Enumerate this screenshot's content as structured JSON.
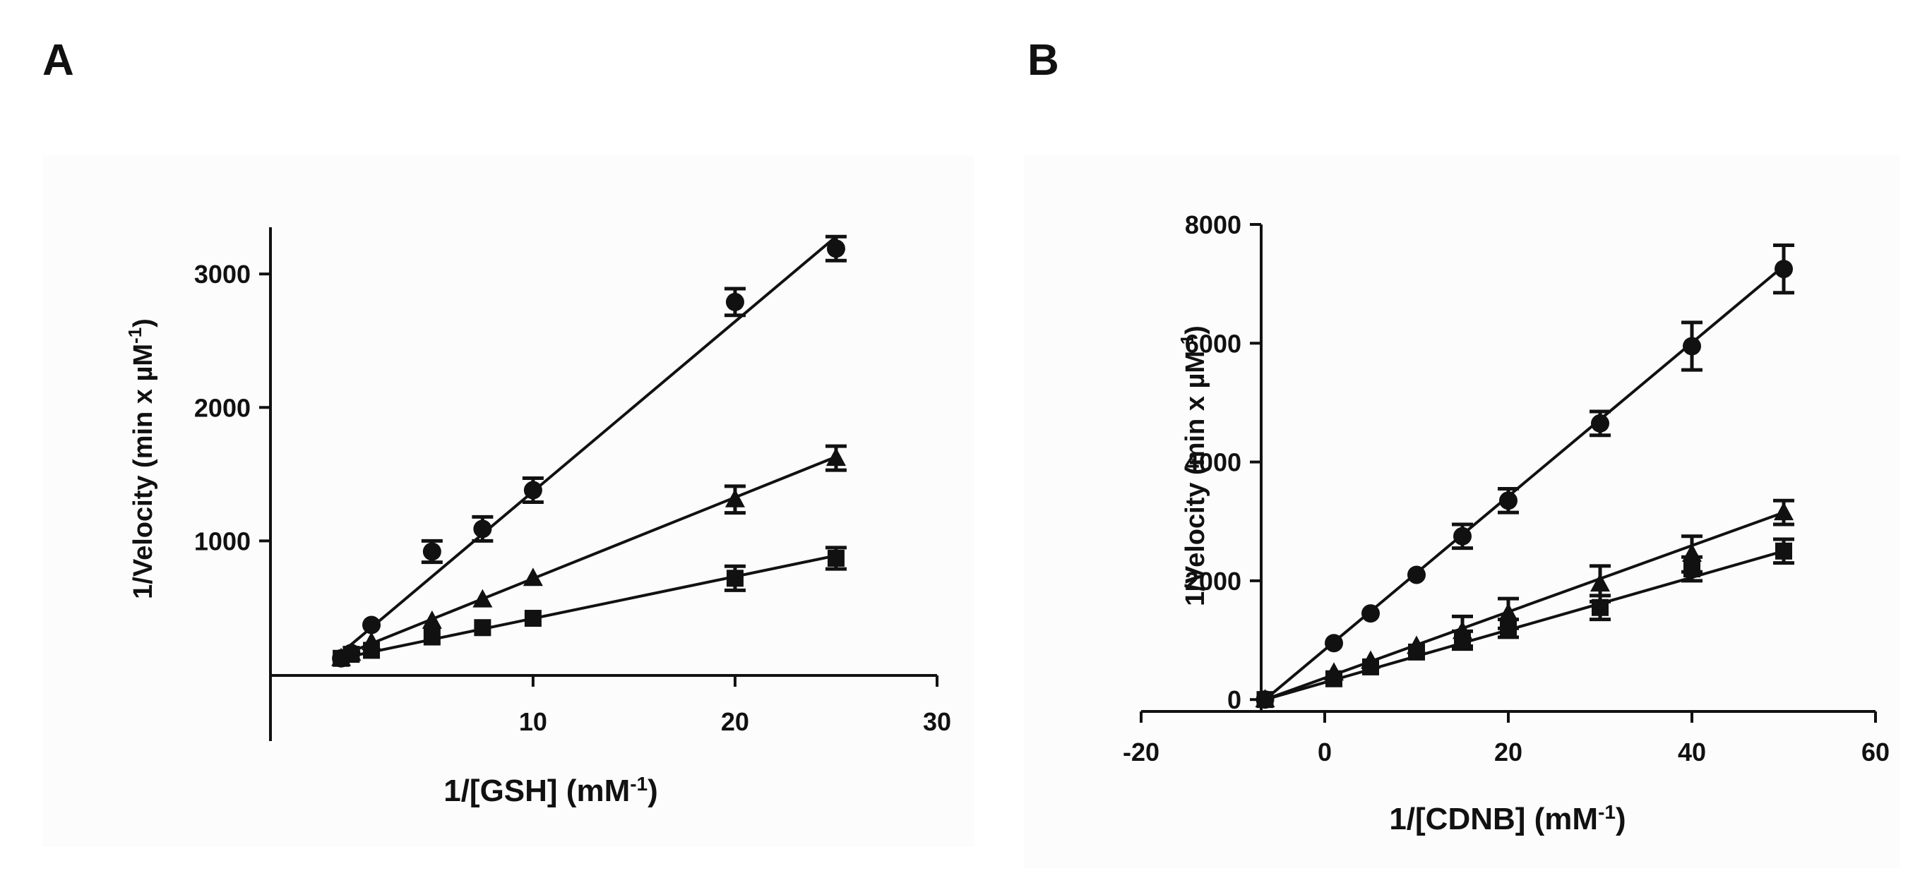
{
  "panels": [
    {
      "label": "A",
      "chart_data": {
        "type": "scatter",
        "title": "",
        "xlabel": "1/[GSH] (mM",
        "xlabel_sup": "-1",
        "xlabel_end": ")",
        "ylabel": "1/Velocity (min x  µM",
        "ylabel_sup": "-1",
        "ylabel_end": ")",
        "xlim": [
          -3,
          30
        ],
        "ylim": [
          -500,
          3350
        ],
        "xticks": [
          10,
          20,
          30
        ],
        "yticks": [
          1000,
          2000,
          3000
        ],
        "xtick_labels": [
          "10",
          "20",
          "30"
        ],
        "ytick_labels": [
          "1000",
          "2000",
          "3000"
        ],
        "series": [
          {
            "name": "circle",
            "marker": "circle",
            "x": [
              0.5,
              1,
              2,
              5,
              7.5,
              10,
              20,
              25
            ],
            "y": [
              120,
              160,
              370,
              920,
              1090,
              1380,
              2790,
              3190
            ],
            "err": [
              0,
              0,
              0,
              80,
              90,
              90,
              100,
              90
            ],
            "fit": [
              [
                0.5,
                160
              ],
              [
                25,
                3280
              ]
            ]
          },
          {
            "name": "triangle",
            "marker": "triangle",
            "x": [
              0.5,
              1,
              2,
              5,
              7.5,
              10,
              20,
              25
            ],
            "y": [
              120,
              160,
              240,
              400,
              560,
              720,
              1310,
              1620
            ],
            "err": [
              0,
              0,
              0,
              0,
              0,
              0,
              100,
              90
            ],
            "fit": [
              [
                0.5,
                140
              ],
              [
                25,
                1630
              ]
            ]
          },
          {
            "name": "square",
            "marker": "square",
            "x": [
              0.5,
              1,
              2,
              5,
              7.5,
              10,
              20,
              25
            ],
            "y": [
              120,
              150,
              180,
              280,
              350,
              420,
              720,
              870
            ],
            "err": [
              0,
              0,
              0,
              0,
              0,
              0,
              90,
              80
            ],
            "fit": [
              [
                0.5,
                120
              ],
              [
                25,
                890
              ]
            ]
          }
        ]
      }
    },
    {
      "label": "B",
      "chart_data": {
        "type": "scatter",
        "title": "",
        "xlabel": "1/[CDNB] (mM",
        "xlabel_sup": "-1",
        "xlabel_end": ")",
        "ylabel": "1/Velocity (min x  µM",
        "ylabel_sup": "-1",
        "ylabel_end": ")",
        "xlim": [
          -20,
          60
        ],
        "ylim": [
          -200,
          8000
        ],
        "xticks": [
          -20,
          0,
          20,
          40,
          60
        ],
        "yticks": [
          0,
          2000,
          4000,
          6000,
          8000
        ],
        "xtick_labels": [
          "-20",
          "0",
          "20",
          "40",
          "60"
        ],
        "ytick_labels": [
          "0",
          "2000",
          "4000",
          "6000",
          "8000"
        ],
        "series": [
          {
            "name": "circle",
            "marker": "circle",
            "x": [
              -6.5,
              1,
              5,
              10,
              15,
              20,
              30,
              40,
              50
            ],
            "y": [
              0,
              950,
              1450,
              2100,
              2750,
              3350,
              4650,
              5950,
              7250
            ],
            "err": [
              0,
              0,
              0,
              0,
              200,
              200,
              200,
              400,
              400
            ],
            "fit": [
              [
                -6.5,
                0
              ],
              [
                50,
                7300
              ]
            ]
          },
          {
            "name": "triangle",
            "marker": "triangle",
            "x": [
              -6.5,
              1,
              5,
              10,
              15,
              20,
              30,
              40,
              50
            ],
            "y": [
              0,
              450,
              650,
              900,
              1150,
              1450,
              1950,
              2450,
              3150
            ],
            "err": [
              0,
              0,
              0,
              0,
              250,
              250,
              300,
              300,
              200
            ],
            "fit": [
              [
                -6.5,
                0
              ],
              [
                50,
                3150
              ]
            ]
          },
          {
            "name": "square",
            "marker": "square",
            "x": [
              -6.5,
              1,
              5,
              10,
              15,
              20,
              30,
              40,
              50
            ],
            "y": [
              0,
              350,
              550,
              800,
              1000,
              1200,
              1550,
              2200,
              2500
            ],
            "err": [
              0,
              0,
              0,
              0,
              150,
              150,
              200,
              200,
              200
            ],
            "fit": [
              [
                -6.5,
                0
              ],
              [
                50,
                2500
              ]
            ]
          }
        ]
      }
    }
  ]
}
